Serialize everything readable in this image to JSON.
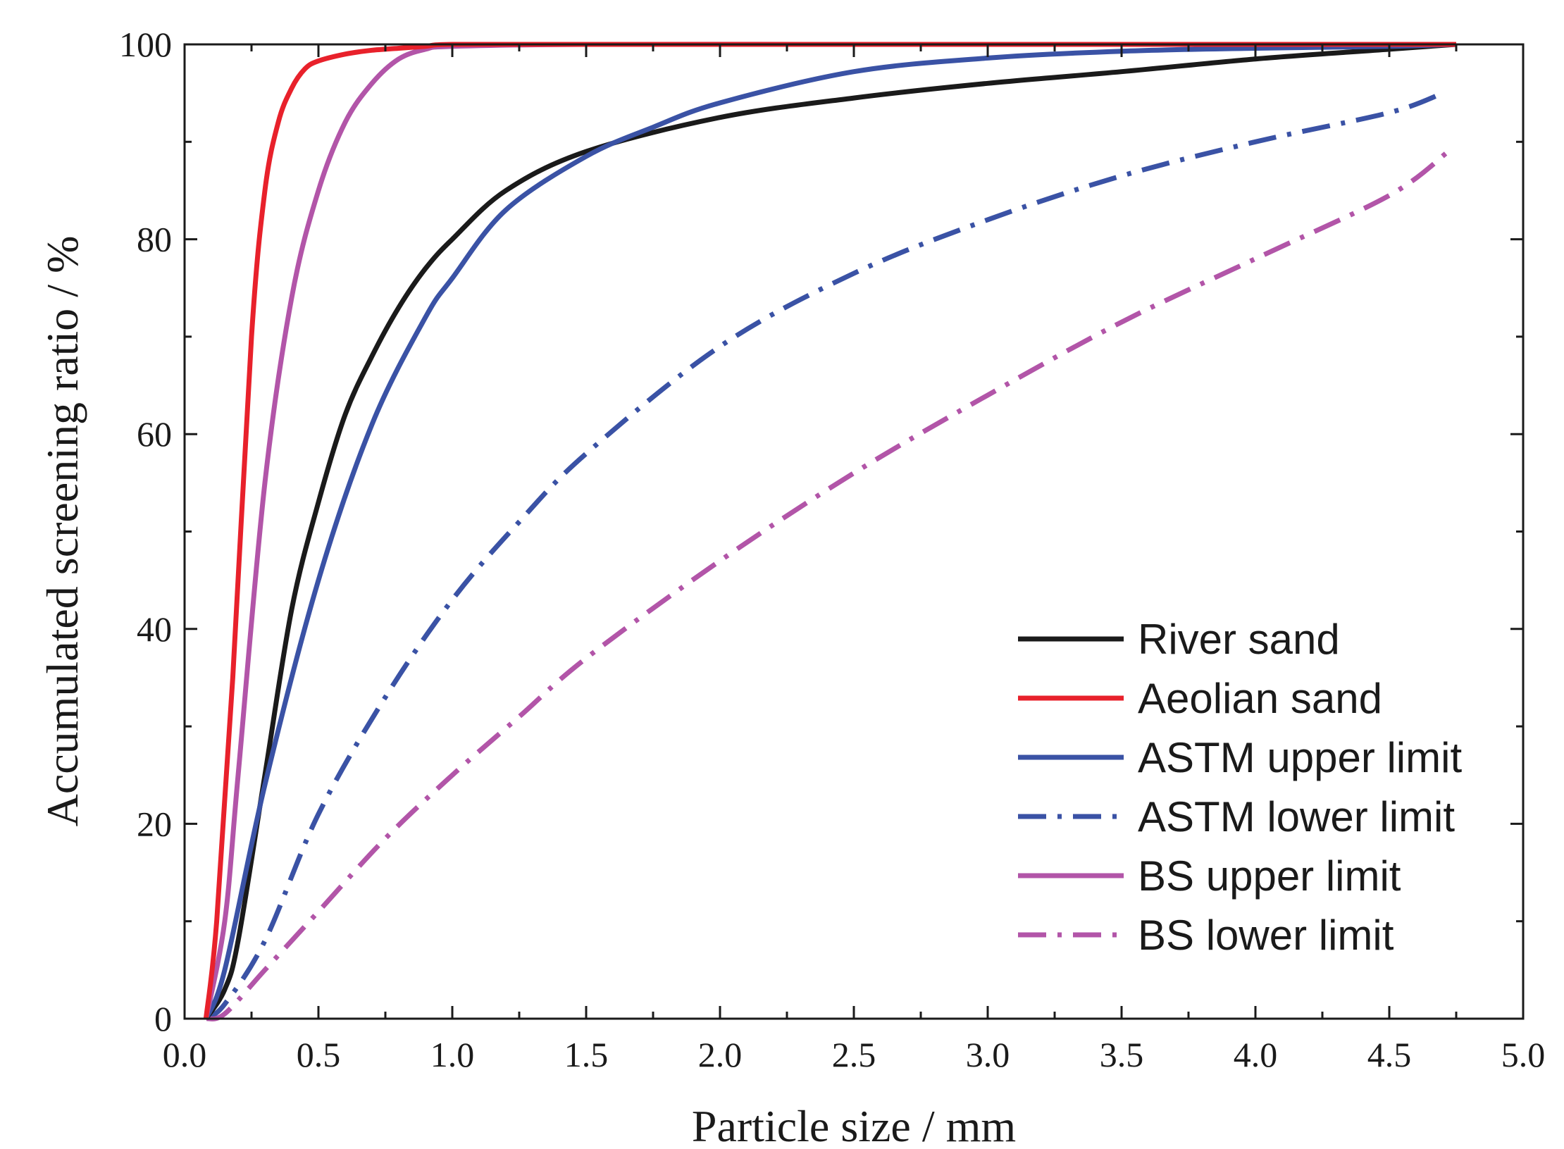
{
  "chart_data": {
    "type": "line",
    "title": "",
    "xlabel": "Particle size / mm",
    "ylabel": "Accumulated screening ratio / %",
    "xlim": [
      0,
      5
    ],
    "ylim": [
      0,
      100
    ],
    "xticks": [
      "0.0",
      "0.5",
      "1.0",
      "1.5",
      "2.0",
      "2.5",
      "3.0",
      "3.5",
      "4.0",
      "4.5",
      "5.0"
    ],
    "yticks": [
      "0",
      "20",
      "40",
      "60",
      "80",
      "100"
    ],
    "grid": false,
    "legend_position": "bottom-right",
    "series": [
      {
        "name": "River sand",
        "color": "#1a1a1a",
        "style": "solid",
        "x": [
          0.08,
          0.15,
          0.2,
          0.3,
          0.4,
          0.5,
          0.6,
          0.7,
          0.8,
          0.9,
          1.0,
          1.2,
          1.5,
          2.0,
          2.5,
          3.0,
          3.5,
          4.0,
          4.5,
          4.75
        ],
        "y": [
          0,
          3,
          8,
          25,
          42,
          53,
          62,
          68,
          73,
          77,
          80,
          85,
          89,
          92.5,
          94.5,
          96,
          97.2,
          98.5,
          99.5,
          100
        ]
      },
      {
        "name": "Aeolian sand",
        "color": "#e8212b",
        "style": "solid",
        "x": [
          0.08,
          0.12,
          0.18,
          0.25,
          0.3,
          0.35,
          0.4,
          0.45,
          0.5,
          0.6,
          0.7,
          0.8,
          0.9,
          1.0,
          1.5,
          2.5,
          3.5,
          4.75
        ],
        "y": [
          0,
          10,
          35,
          70,
          85,
          92,
          95.5,
          97.5,
          98.3,
          99,
          99.4,
          99.6,
          99.8,
          100,
          100,
          100,
          100,
          100
        ]
      },
      {
        "name": "ASTM upper limit",
        "color": "#3a52a5",
        "style": "solid",
        "x": [
          0.08,
          0.15,
          0.3,
          0.5,
          0.7,
          0.9,
          1.0,
          1.2,
          1.5,
          1.75,
          2.0,
          2.5,
          3.0,
          3.5,
          4.0,
          4.5,
          4.75
        ],
        "y": [
          0,
          5,
          24,
          45,
          61,
          72,
          76,
          83,
          88.5,
          91.5,
          94,
          97.2,
          98.6,
          99.3,
          99.6,
          99.8,
          100
        ]
      },
      {
        "name": "ASTM lower limit",
        "color": "#3a52a5",
        "style": "dashdot",
        "x": [
          0.08,
          0.15,
          0.3,
          0.5,
          0.75,
          1.0,
          1.25,
          1.5,
          2.0,
          2.5,
          3.0,
          3.5,
          4.0,
          4.5,
          4.7
        ],
        "y": [
          0,
          1.5,
          8,
          21,
          33,
          43,
          51,
          58,
          69,
          76.5,
          82,
          86.5,
          90,
          93,
          95
        ]
      },
      {
        "name": "BS upper limit",
        "color": "#b255a8",
        "style": "solid",
        "x": [
          0.08,
          0.15,
          0.2,
          0.3,
          0.4,
          0.5,
          0.6,
          0.7,
          0.8,
          0.9,
          1.0,
          1.5,
          2.5,
          3.5,
          4.75
        ],
        "y": [
          0,
          10,
          25,
          55,
          74,
          85,
          92,
          96,
          98.5,
          99.5,
          99.8,
          100,
          100,
          100,
          100
        ]
      },
      {
        "name": "BS lower limit",
        "color": "#b255a8",
        "style": "dashdot",
        "x": [
          0.08,
          0.15,
          0.3,
          0.5,
          0.75,
          1.0,
          1.25,
          1.5,
          2.0,
          2.5,
          3.0,
          3.5,
          4.0,
          4.5,
          4.72
        ],
        "y": [
          0,
          0.5,
          5,
          11,
          18.5,
          25,
          31,
          37,
          47,
          56,
          64,
          71.5,
          78,
          84.5,
          89
        ]
      }
    ]
  }
}
